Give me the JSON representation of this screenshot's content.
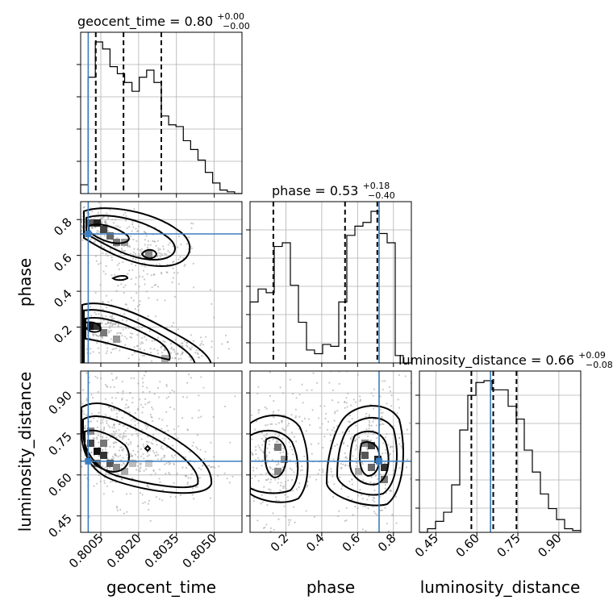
{
  "chart_data": {
    "type": "corner",
    "parameters": [
      "geocent_time",
      "phase",
      "luminosity_distance"
    ],
    "axis_labels": {
      "geocent_time": "geocent_time",
      "phase": "phase",
      "luminosity_distance": "luminosity_distance"
    },
    "titles": [
      {
        "name": "geocent_time",
        "value": "0.80",
        "plus": "+0.00",
        "minus": "−0.00"
      },
      {
        "name": "phase",
        "value": "0.53",
        "plus": "+0.18",
        "minus": "−0.40"
      },
      {
        "name": "luminosity_distance",
        "value": "0.66",
        "plus": "+0.09",
        "minus": "−0.08"
      }
    ],
    "truths": {
      "geocent_time": 0.8,
      "phase": 0.72,
      "luminosity_distance": 0.65
    },
    "truth_color": "#3a7ebf",
    "ranges": {
      "geocent_time": [
        0.7997,
        0.8061
      ],
      "phase": [
        0.0,
        0.9
      ],
      "luminosity_distance": [
        0.39,
        0.98
      ]
    },
    "ticks": {
      "geocent_time": [
        0.8005,
        0.802,
        0.8035,
        0.805
      ],
      "phase": [
        0.2,
        0.4,
        0.6,
        0.8
      ],
      "luminosity_distance": [
        0.45,
        0.6,
        0.75,
        0.9
      ]
    },
    "tick_labels": {
      "geocent_time": [
        "0.8005",
        "0.8020",
        "0.8035",
        "0.8050"
      ],
      "phase": [
        "0.2",
        "0.4",
        "0.6",
        "0.8"
      ],
      "luminosity_distance": [
        "0.45",
        "0.60",
        "0.75",
        "0.90"
      ]
    },
    "quantiles": {
      "geocent_time": [
        0.8003,
        0.8014,
        0.8029
      ],
      "phase": [
        0.13,
        0.53,
        0.71
      ],
      "luminosity_distance": [
        0.58,
        0.66,
        0.745
      ]
    },
    "histograms": {
      "geocent_time": [
        0.05,
        0.66,
        0.86,
        0.82,
        0.72,
        0.68,
        0.63,
        0.58,
        0.66,
        0.7,
        0.63,
        0.44,
        0.39,
        0.38,
        0.3,
        0.25,
        0.19,
        0.12,
        0.06,
        0.02,
        0.01,
        0.0
      ],
      "phase": [
        0.33,
        0.4,
        0.38,
        0.63,
        0.65,
        0.42,
        0.22,
        0.07,
        0.05,
        0.1,
        0.09,
        0.33,
        0.69,
        0.74,
        0.76,
        0.82,
        0.7,
        0.65,
        0.04,
        0.0
      ],
      "luminosity_distance": [
        0.0,
        0.02,
        0.06,
        0.11,
        0.26,
        0.56,
        0.75,
        0.82,
        0.83,
        0.78,
        0.78,
        0.69,
        0.62,
        0.45,
        0.33,
        0.21,
        0.13,
        0.07,
        0.02,
        0.01
      ]
    },
    "grid": true
  }
}
